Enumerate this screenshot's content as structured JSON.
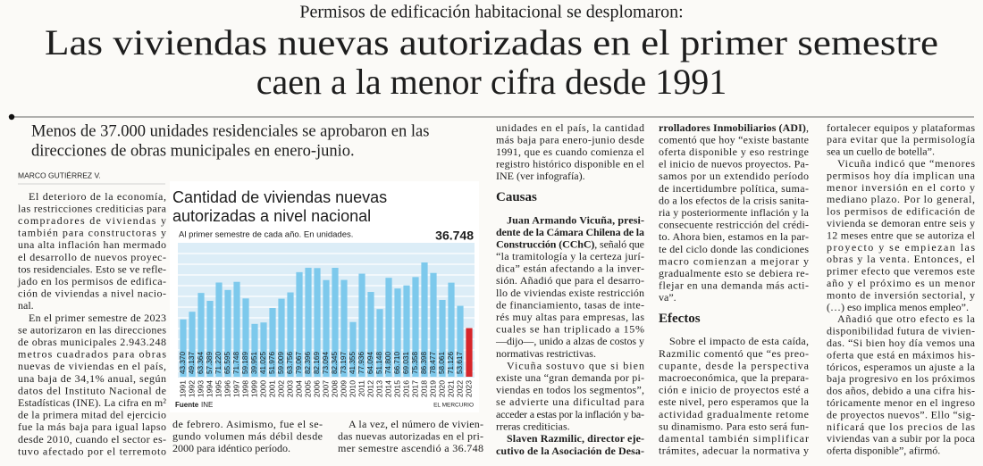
{
  "kicker": "Permisos de edificación habitacional se desplomaron:",
  "headline": [
    "Las viviendas nuevas autorizadas en el primer semestre",
    "caen a la menor cifra desde 1991"
  ],
  "deck": [
    "Menos de 37.000 unidades residenciales se aprobaron en las",
    "direcciones de obras municipales en enero-junio."
  ],
  "byline": "MARCO GUTIÉRREZ V.",
  "columns": [
    {
      "blocks": [
        {
          "indent": true,
          "lines": [
            "El deterioro de la economía,",
            "las restricciones crediticias para",
            "compradores de viviendas y",
            "también para constructoras y",
            "una alta inflación han mermado",
            "el desarrollo de nuevos proyec-",
            "tos residenciales. Esto se ve refle-",
            "jado en los permisos de edifica-",
            "ción de viviendas a nivel nacio-",
            "nal."
          ]
        },
        {
          "indent": true,
          "lines": [
            "En el primer semestre de 2023",
            "se autorizaron en las direcciones",
            "de obras municipales 2.943.248",
            "metros cuadrados para obras",
            "nuevas de viviendas en el país,",
            "una baja de 34,1% anual, según",
            "datos del Instituto Nacional de",
            "Estadísticas (INE). La cifra en m²",
            "de la primera mitad del ejercicio",
            "fue la más baja para igual lapso",
            "desde 2010, cuando el sector es-",
            "tuvo afectado por el terremoto"
          ]
        }
      ]
    },
    {
      "blocks": [
        {
          "indent": false,
          "lines": [
            "de febrero. Asimismo, fue el se-",
            "gundo volumen más débil desde",
            "2000 para idéntico período."
          ]
        }
      ]
    },
    {
      "blocks": [
        {
          "indent": true,
          "lines": [
            "A la vez, el número de vivien-",
            "das nuevas autorizadas en el pri-",
            "mer semestre ascendió a 36.748"
          ]
        }
      ]
    },
    {
      "blocks": [
        {
          "indent": false,
          "lines": [
            "unidades en el país, la cantidad",
            "más baja para enero-junio desde",
            "1991, que es cuando comienza el",
            "registro histórico disponible en el",
            "INE (ver infografía)."
          ]
        },
        {
          "heading": "Causas"
        },
        {
          "indent": true,
          "lines": [
            [
              {
                "strong": "Juan Armando Vicuña, presi-"
              }
            ],
            [
              {
                "strong": "dente de la Cámara Chilena de la"
              }
            ],
            [
              {
                "strong": "Construcción (CChC)"
              },
              ", señaló que"
            ],
            "“la tramitología y la certeza jurí-",
            "dica” están afectando a la inver-",
            "sión. Añadió que para el desarro-",
            "llo de viviendas existe restricción",
            "de financiamiento, tasas de inte-",
            "rés muy altas para empresas, las",
            "cuales se han triplicado a 15%",
            "—dijo—, unido a alzas de costos y",
            "normativas restrictivas."
          ]
        },
        {
          "indent": true,
          "lines": [
            "Vicuña sostuvo que si bien",
            "existe una “gran demanda por pi-",
            "viendas en todos los segmentos”,",
            "se advierte una dificultad para",
            "acceder a estas por la inflación y ba-",
            "rreras crediticias."
          ]
        },
        {
          "indent": true,
          "lines": [
            [
              {
                "strong": "Slaven Razmilic, director eje-"
              }
            ],
            [
              {
                "strong": "cutivo de la Asociación de Desa-"
              }
            ]
          ]
        }
      ]
    },
    {
      "blocks": [
        {
          "indent": false,
          "lines": [
            [
              {
                "strong": "rrolladores Inmobiliarios (ADI)"
              },
              ","
            ],
            "comentó que hoy “existe bastante",
            "oferta disponible y eso restringe",
            "el inicio de nuevos proyectos. Pa-",
            "samos por un extendido período",
            "de incertidumbre política, suma-",
            "do a los efectos de la crisis sanita-",
            "ria y posteriormente inflación y la",
            "consecuente restricción del crédi-",
            "to. Ahora bien, estamos en la par-",
            "te del ciclo donde las condiciones",
            "macro comienzan a mejorar y",
            "gradualmente esto se debiera re-",
            "flejar en una demanda más acti-",
            "va”."
          ]
        },
        {
          "heading": "Efectos"
        },
        {
          "indent": true,
          "lines": [
            "Sobre el impacto de esta caída,",
            "Razmilic comentó que “es preo-",
            "cupante, desde la perspectiva",
            "macroeconómica, que la prepara-",
            "ción e inicio de proyectos esté a",
            "este nivel, pero esperamos que la",
            "actividad gradualmente retome",
            "su dinamismo. Para esto será fun-",
            "damental también simplificar",
            "trámites, adecuar la normativa y"
          ]
        }
      ]
    },
    {
      "blocks": [
        {
          "indent": false,
          "lines": [
            "fortalecer equipos y plataformas",
            "para evitar que la permisología",
            "sea un cuello de botella”."
          ]
        },
        {
          "indent": true,
          "lines": [
            "Vicuña indicó que “menores",
            "permisos hoy día implican una",
            "menor inversión en el corto y",
            "mediano plazo. Por lo general,",
            "los permisos de edificación de",
            "vivienda se demoran entre seis y",
            "12 meses entre que se autoriza el",
            "proyecto y se empiezan las",
            "obras y la venta. Entonces, el",
            "primer efecto que veremos este",
            "año y el próximo es un menor",
            "monto de inversión sectorial, y",
            "(…) eso implica menos empleo”."
          ]
        },
        {
          "indent": true,
          "lines": [
            "Añadió que otro efecto es la",
            "disponibilidad futura de vivien-",
            "das. “Si bien hoy día vemos una",
            "oferta que está en máximos his-",
            "tóricos, esperamos un ajuste a la",
            "baja progresivo en los próximos",
            "dos años, debido a una cifra his-",
            "tóricamente menor en el ingreso",
            "de proyectos nuevos”. Ello “sig-",
            "nificará que los precios de las",
            "viviendas van a subir por la poca",
            "oferta disponible”, afirmó."
          ]
        }
      ]
    }
  ],
  "chart_data": {
    "type": "bar",
    "title": [
      "Cantidad de viviendas nuevas",
      "autorizadas a nivel nacional"
    ],
    "subtitle": "Al primer semestre de cada año. En unidades.",
    "categories": [
      "1991",
      "1992",
      "1993",
      "1994",
      "1995",
      "1996",
      "1997",
      "1998",
      "1999",
      "2000",
      "2001",
      "2002",
      "2003",
      "2004",
      "2005",
      "2006",
      "2007",
      "2008",
      "2009",
      "2010",
      "2011",
      "2012",
      "2013",
      "2014",
      "2015",
      "2016",
      "2017",
      "2018",
      "2019",
      "2020",
      "2021",
      "2022",
      "2023"
    ],
    "values": [
      43370,
      49137,
      63364,
      57389,
      71220,
      65595,
      71748,
      59189,
      39951,
      41025,
      51976,
      59009,
      63756,
      79067,
      82396,
      82169,
      73094,
      82345,
      73197,
      41355,
      77936,
      64094,
      51148,
      74800,
      66710,
      69031,
      75358,
      86398,
      78477,
      58061,
      71126,
      53617,
      36748
    ],
    "value_labels": [
      "43.370",
      "49.137",
      "63.364",
      "57.389",
      "71.220",
      "65.595",
      "71.748",
      "59.189",
      "39.951",
      "41.025",
      "51.976",
      "59.009",
      "63.756",
      "79.067",
      "82.396",
      "82.169",
      "73.094",
      "82.345",
      "73.197",
      "41.355",
      "77.936",
      "64.094",
      "51.148",
      "74.800",
      "66.710",
      "69.031",
      "75.358",
      "86.398",
      "78.477",
      "58.061",
      "71.126",
      "53.617",
      "36.748"
    ],
    "colors": [
      "#7dc9ec",
      "#7dc9ec",
      "#7dc9ec",
      "#7dc9ec",
      "#7dc9ec",
      "#7dc9ec",
      "#7dc9ec",
      "#7dc9ec",
      "#7dc9ec",
      "#7dc9ec",
      "#7dc9ec",
      "#7dc9ec",
      "#7dc9ec",
      "#7dc9ec",
      "#7dc9ec",
      "#7dc9ec",
      "#7dc9ec",
      "#7dc9ec",
      "#7dc9ec",
      "#7dc9ec",
      "#7dc9ec",
      "#7dc9ec",
      "#7dc9ec",
      "#7dc9ec",
      "#7dc9ec",
      "#7dc9ec",
      "#7dc9ec",
      "#7dc9ec",
      "#7dc9ec",
      "#7dc9ec",
      "#7dc9ec",
      "#7dc9ec",
      "#d7262b"
    ],
    "source_label": "Fuente",
    "source": "INE",
    "credit": "EL MERCURIO"
  }
}
